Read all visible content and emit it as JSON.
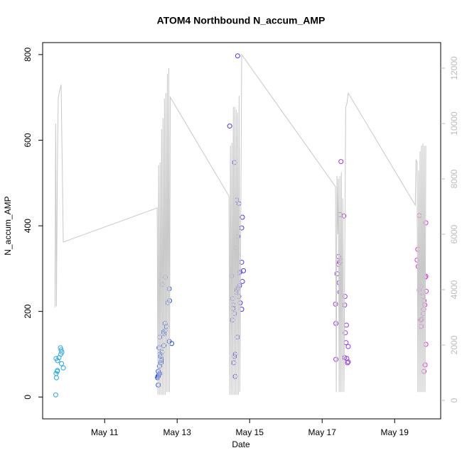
{
  "chart_data": {
    "type": "scatter",
    "title": "ATOM4 Northbound N_accum_AMP",
    "x_label": "Date",
    "y_label": "N_accum_AMP",
    "xlim": [
      9.29,
      20.27
    ],
    "xticks": [
      {
        "value": 11,
        "label": "May 11"
      },
      {
        "value": 13,
        "label": "May 13"
      },
      {
        "value": 15,
        "label": "May 15"
      },
      {
        "value": 17,
        "label": "May 17"
      },
      {
        "value": 19,
        "label": "May 19"
      }
    ],
    "ylim": [
      -51,
      828
    ],
    "yticks": [
      0,
      200,
      400,
      600,
      800
    ],
    "y2lim": [
      -667,
      12923
    ],
    "y2ticks": [
      0,
      2000,
      4000,
      6000,
      8000,
      10000,
      12000
    ],
    "y2_color": "#bbbbbb",
    "series": [
      {
        "color": "#2aa7e3",
        "x": [
          9.65,
          9.67,
          9.66,
          9.69,
          9.7,
          9.86,
          9.81,
          9.7,
          9.66,
          9.74,
          9.79,
          9.82,
          9.8,
          9.78
        ],
        "values": [
          5,
          45,
          55,
          60,
          62,
          68,
          78,
          85,
          90,
          92,
          100,
          105,
          110,
          115
        ]
      },
      {
        "color": "#2050f0",
        "x": [
          12.48,
          12.46,
          12.47,
          12.49,
          12.5,
          12.52,
          12.48,
          12.51,
          12.55,
          12.56,
          12.57,
          12.54,
          12.53,
          12.58,
          12.5,
          12.63,
          12.85,
          12.78,
          12.52,
          12.64,
          12.62,
          12.66,
          12.7,
          12.66,
          12.74,
          12.79,
          12.78,
          12.58,
          12.67
        ],
        "values": [
          28,
          45,
          48,
          50,
          52,
          55,
          60,
          72,
          80,
          85,
          88,
          95,
          100,
          105,
          115,
          120,
          125,
          130,
          140,
          148,
          152,
          155,
          165,
          172,
          220,
          225,
          253,
          263,
          280
        ]
      },
      {
        "color": "#4a2ff0",
        "x": [
          14.6,
          14.56,
          14.58,
          14.6,
          14.66,
          14.52,
          14.58,
          14.78,
          14.54,
          14.55,
          14.74,
          14.52,
          14.7,
          14.62,
          14.64,
          14.68,
          14.72,
          14.8,
          14.5,
          14.7,
          14.73,
          14.83,
          14.78,
          14.66,
          14.62,
          14.68,
          14.78,
          14.8,
          14.7,
          14.64,
          14.58,
          14.45,
          14.67
        ],
        "values": [
          48,
          80,
          95,
          100,
          140,
          180,
          195,
          205,
          207,
          215,
          220,
          230,
          235,
          245,
          250,
          255,
          260,
          270,
          283,
          290,
          292,
          295,
          315,
          335,
          348,
          375,
          395,
          420,
          452,
          460,
          548,
          633,
          797
        ]
      },
      {
        "color": "#9a38e0",
        "x": [
          17.7,
          17.72,
          17.38,
          17.68,
          17.62,
          17.72,
          17.66,
          17.64,
          17.67,
          17.38,
          17.62,
          17.37,
          17.63,
          17.49,
          17.47,
          17.41,
          17.45,
          17.48,
          17.52,
          17.45,
          17.6,
          17.49,
          17.52
        ],
        "values": [
          80,
          82,
          88,
          90,
          92,
          118,
          127,
          150,
          168,
          172,
          215,
          217,
          235,
          245,
          267,
          288,
          310,
          315,
          318,
          328,
          423,
          426,
          550
        ]
      },
      {
        "color": "#e028d8",
        "x": [
          19.81,
          19.84,
          19.86,
          19.73,
          19.72,
          19.75,
          19.79,
          19.8,
          19.83,
          19.81,
          19.78,
          19.7,
          19.87,
          19.68,
          19.72,
          19.84,
          19.86,
          19.65,
          19.62,
          19.64,
          19.86,
          19.68
        ],
        "values": [
          60,
          75,
          123,
          165,
          180,
          182,
          195,
          205,
          215,
          225,
          235,
          245,
          247,
          250,
          258,
          280,
          282,
          305,
          320,
          345,
          407,
          424
        ]
      },
      {
        "type": "line",
        "axis": "y2",
        "color": "#c8c8c8",
        "x": [
          9.63,
          9.65,
          9.67,
          9.7,
          9.72,
          9.76,
          9.8,
          9.86,
          12.45,
          12.47,
          12.49,
          12.51,
          12.53,
          12.55,
          12.57,
          12.59,
          12.61,
          12.63,
          12.65,
          12.67,
          12.69,
          12.71,
          12.73,
          12.75,
          12.77,
          12.79,
          12.81,
          14.43,
          14.45,
          14.47,
          14.49,
          14.51,
          14.53,
          14.55,
          14.57,
          14.59,
          14.61,
          14.63,
          14.65,
          14.67,
          14.69,
          14.71,
          14.73,
          14.78,
          17.37,
          17.39,
          17.41,
          17.43,
          17.45,
          17.47,
          17.49,
          17.51,
          17.53,
          17.55,
          17.57,
          17.6,
          17.65,
          17.68,
          17.72,
          19.57,
          19.59,
          19.62,
          19.64,
          19.66,
          19.68,
          19.7,
          19.72,
          19.74,
          19.76,
          19.78,
          19.8,
          19.82,
          19.84,
          19.86
        ],
        "values": [
          3360,
          10000,
          3400,
          9000,
          10900,
          11200,
          11400,
          5720,
          6950,
          200,
          8500,
          200,
          8600,
          200,
          9800,
          200,
          10200,
          200,
          10900,
          200,
          11100,
          300,
          11800,
          300,
          12000,
          300,
          10950,
          7380,
          200,
          9200,
          200,
          9300,
          200,
          10600,
          200,
          10600,
          200,
          10500,
          200,
          10400,
          200,
          11000,
          300,
          12490,
          7720,
          300,
          8100,
          6000,
          8000,
          300,
          8100,
          300,
          8250,
          300,
          7300,
          300,
          10600,
          10700,
          11100,
          7050,
          8700,
          8600,
          300,
          8300,
          300,
          9000,
          300,
          9200,
          300,
          9280,
          300,
          9200,
          300,
          9200
        ]
      }
    ]
  }
}
